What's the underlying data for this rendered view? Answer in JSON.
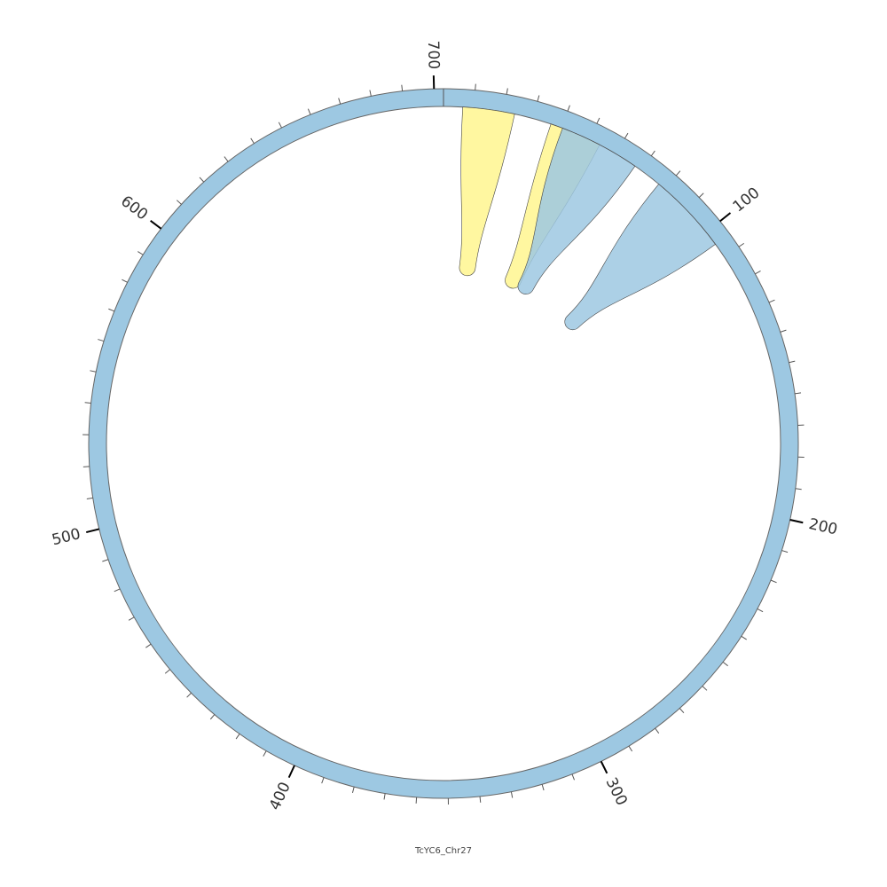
{
  "chart_data": {
    "type": "circos",
    "title": "TcYC6_Chr27",
    "xlim": [
      0,
      703
    ],
    "xticks": [
      100,
      200,
      300,
      400,
      500,
      600,
      700
    ],
    "minor_tick_interval": 10,
    "track_color": "#9dc8e2",
    "links": [
      {
        "start": 6.4,
        "end": 23.8,
        "color": "#fff68f"
      },
      {
        "start": 36.3,
        "end": 53.9,
        "color": "#fff68f"
      },
      {
        "start": 40.4,
        "end": 67.6,
        "color": "#9dc8e2"
      },
      {
        "start": 77.5,
        "end": 105,
        "color": "#9dc8e2"
      }
    ]
  }
}
